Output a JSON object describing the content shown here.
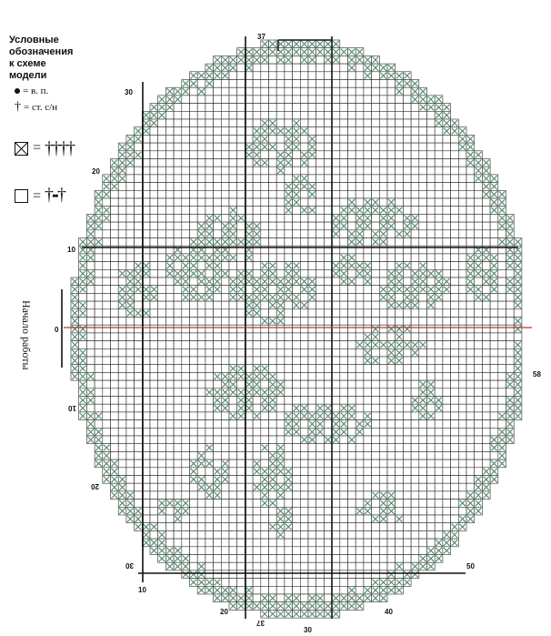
{
  "legend": {
    "title_line1": "Условные",
    "title_line2": "обозначения",
    "title_line3": "к схеме",
    "title_line4": "модели",
    "chain_label": "= в. п.",
    "dc_label": "= ст. с/н",
    "filled_equals": "=",
    "empty_equals": "="
  },
  "side_label": "Начало работы",
  "axis_labels": {
    "top": "37",
    "bottom_rotated": "37",
    "bottom_30": "30",
    "bottom_10": "10",
    "bottom_20": "20",
    "bottom_40": "40",
    "left_30": "30",
    "left_20": "20",
    "left_10": "10",
    "left_0": "0",
    "left_10b": "10",
    "left_20b": "20",
    "left_30b": "30",
    "right_58": "58",
    "right_50": "50"
  },
  "colors": {
    "grid": "#2a2a2a",
    "filled_cross": "#4f8a6a",
    "center_line": "#b03a3a"
  }
}
